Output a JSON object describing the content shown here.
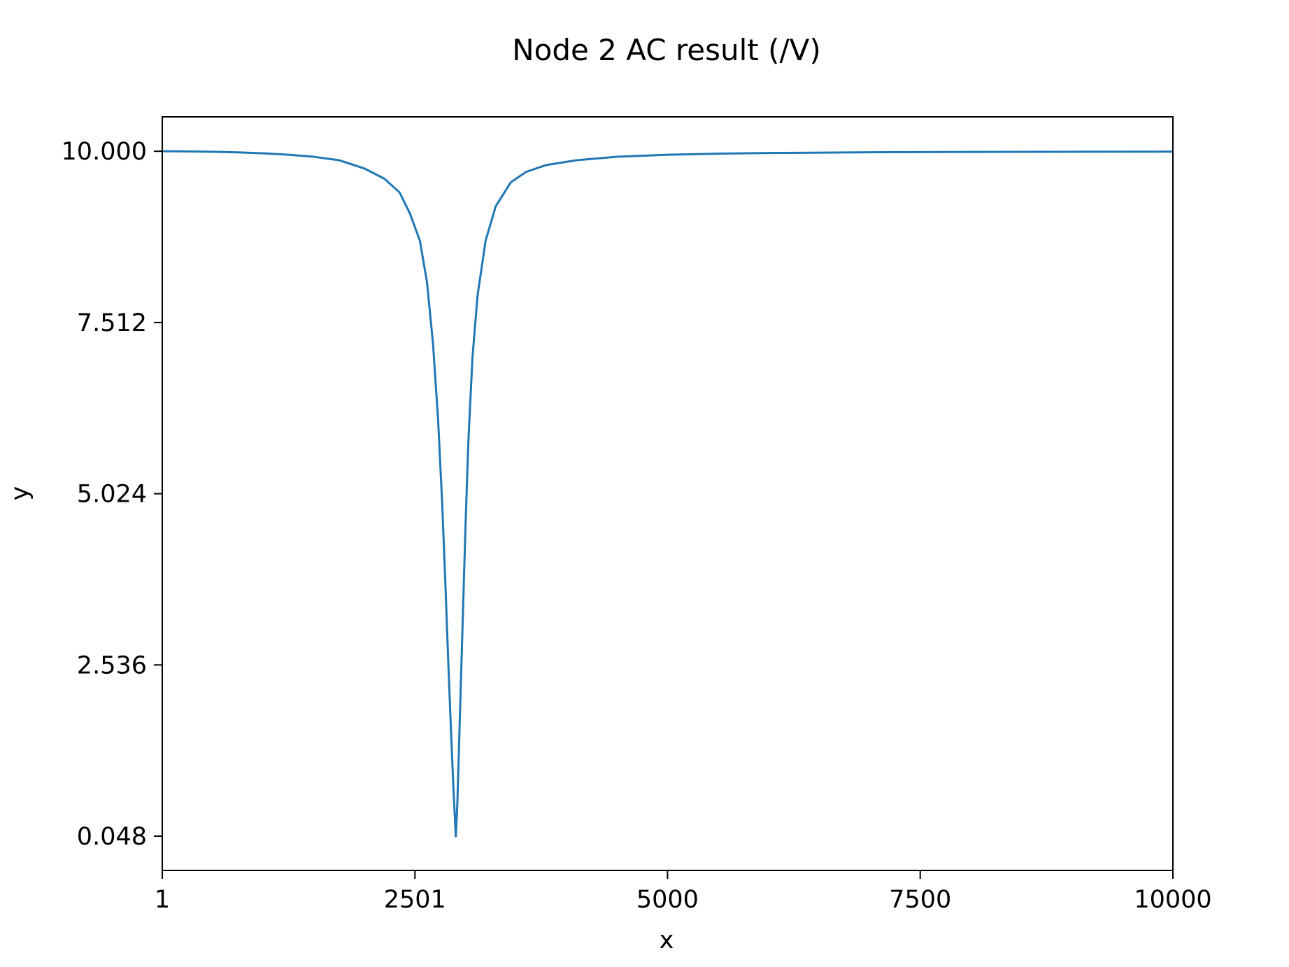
{
  "chart_data": {
    "type": "line",
    "title": "Node 2 AC result (/V)",
    "xlabel": "x",
    "ylabel": "y",
    "xlim": [
      1,
      10000
    ],
    "ylim": [
      -0.45,
      10.5
    ],
    "grid": false,
    "legend": "none",
    "x_ticks": [
      1,
      2501,
      5000,
      7500,
      10000
    ],
    "x_tick_labels": [
      "1",
      "2501",
      "5000",
      "7500",
      "10000"
    ],
    "y_ticks": [
      0.048,
      2.536,
      5.024,
      7.512,
      10.0
    ],
    "y_tick_labels": [
      "0.048",
      "2.536",
      "5.024",
      "7.512",
      "10.000"
    ],
    "series": [
      {
        "color": "#1f77b4",
        "x": [
          1,
          250,
          500,
          750,
          1000,
          1250,
          1500,
          1750,
          2000,
          2200,
          2350,
          2450,
          2550,
          2620,
          2680,
          2730,
          2770,
          2800,
          2830,
          2860,
          2880,
          2895,
          2905,
          2920,
          2940,
          2970,
          3000,
          3030,
          3070,
          3120,
          3200,
          3300,
          3450,
          3600,
          3800,
          4100,
          4500,
          5000,
          5500,
          6000,
          7000,
          8000,
          9000,
          10000
        ],
        "y": [
          10.0,
          9.998,
          9.993,
          9.984,
          9.97,
          9.95,
          9.92,
          9.87,
          9.75,
          9.6,
          9.4,
          9.1,
          8.7,
          8.1,
          7.2,
          6.1,
          4.9,
          3.8,
          2.6,
          1.5,
          0.8,
          0.35,
          0.048,
          0.5,
          1.5,
          3.0,
          4.5,
          5.8,
          7.0,
          7.9,
          8.7,
          9.2,
          9.55,
          9.7,
          9.8,
          9.87,
          9.92,
          9.95,
          9.965,
          9.975,
          9.985,
          9.99,
          9.993,
          9.995
        ]
      }
    ]
  }
}
